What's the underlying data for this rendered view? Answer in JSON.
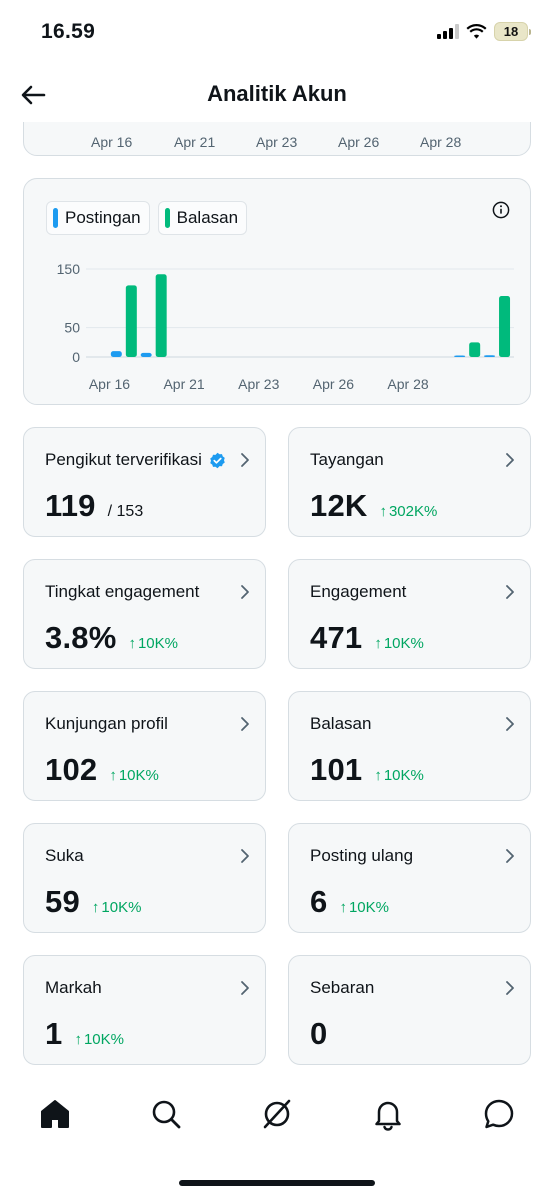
{
  "status_bar": {
    "time": "16.59",
    "battery": "18"
  },
  "header": {
    "title": "Analitik Akun"
  },
  "top_chart_axis": [
    "Apr 16",
    "Apr 21",
    "Apr 23",
    "Apr 26",
    "Apr 28"
  ],
  "chart_data": {
    "type": "bar",
    "title": "",
    "xlabel": "",
    "ylabel": "",
    "ylim": [
      0,
      150
    ],
    "yticks": [
      150,
      50,
      0
    ],
    "x_tick_labels": [
      "Apr 16",
      "Apr 21",
      "Apr 23",
      "Apr 26",
      "Apr 28"
    ],
    "legend_placement": "top-left",
    "grid": true,
    "series": [
      {
        "name": "Postingan",
        "color": "#1d9bf0",
        "points": [
          {
            "slot": 2,
            "value": 10
          },
          {
            "slot": 4,
            "value": 7
          },
          {
            "slot": 25,
            "value": 2
          },
          {
            "slot": 27,
            "value": 3
          }
        ]
      },
      {
        "name": "Balasan",
        "color": "#00ba7c",
        "points": [
          {
            "slot": 2,
            "value": 122
          },
          {
            "slot": 4,
            "value": 141
          },
          {
            "slot": 25,
            "value": 25
          },
          {
            "slot": 27,
            "value": 104
          }
        ]
      }
    ],
    "slot_count": 28,
    "x_tick_slots": [
      0,
      5,
      10,
      15,
      20
    ]
  },
  "stats": [
    {
      "label": "Pengikut terverifikasi",
      "value": "119",
      "sub": "/ 153",
      "change": "",
      "verified": true
    },
    {
      "label": "Tayangan",
      "value": "12K",
      "sub": "",
      "change": "302K%",
      "verified": false
    },
    {
      "label": "Tingkat engagement",
      "value": "3.8%",
      "sub": "",
      "change": "10K%",
      "verified": false
    },
    {
      "label": "Engagement",
      "value": "471",
      "sub": "",
      "change": "10K%",
      "verified": false
    },
    {
      "label": "Kunjungan profil",
      "value": "102",
      "sub": "",
      "change": "10K%",
      "verified": false
    },
    {
      "label": "Balasan",
      "value": "101",
      "sub": "",
      "change": "10K%",
      "verified": false
    },
    {
      "label": "Suka",
      "value": "59",
      "sub": "",
      "change": "10K%",
      "verified": false
    },
    {
      "label": "Posting ulang",
      "value": "6",
      "sub": "",
      "change": "10K%",
      "verified": false
    },
    {
      "label": "Markah",
      "value": "1",
      "sub": "",
      "change": "10K%",
      "verified": false
    },
    {
      "label": "Sebaran",
      "value": "0",
      "sub": "",
      "change": "",
      "verified": false
    }
  ],
  "change_arrow": "↑",
  "tabbar": [
    "home-icon",
    "search-icon",
    "grok-icon",
    "notifications-icon",
    "messages-icon"
  ]
}
